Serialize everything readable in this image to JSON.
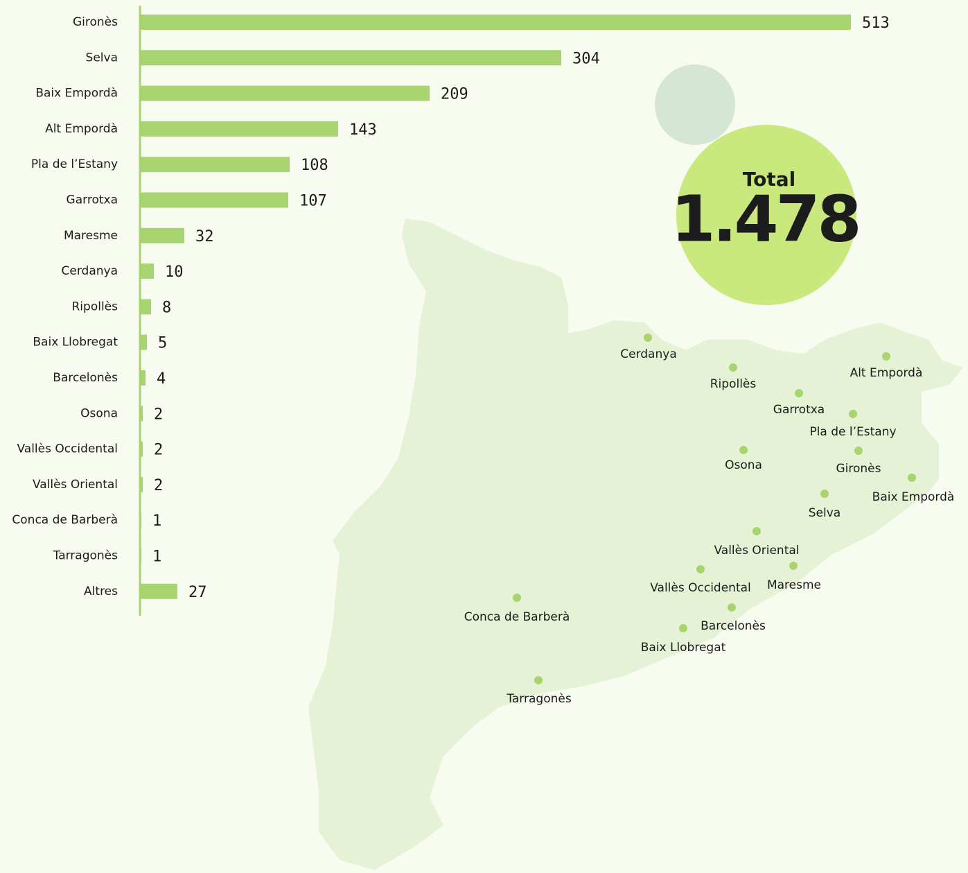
{
  "chart_data": {
    "type": "bar",
    "categories": [
      "Gironès",
      "Selva",
      "Baix Empordà",
      "Alt Empordà",
      "Pla de l’Estany",
      "Garrotxa",
      "Maresme",
      "Cerdanya",
      "Ripollès",
      "Baix Llobregat",
      "Barcelonès",
      "Osona",
      "Vallès Occidental",
      "Vallès Oriental",
      "Conca de Barberà",
      "Tarragonès",
      "Altres"
    ],
    "values": [
      513,
      304,
      209,
      143,
      108,
      107,
      32,
      10,
      8,
      5,
      4,
      2,
      2,
      2,
      1,
      1,
      27
    ],
    "color": "#a8d46f",
    "total": {
      "label": "Total",
      "value": "1.478"
    }
  }
}
